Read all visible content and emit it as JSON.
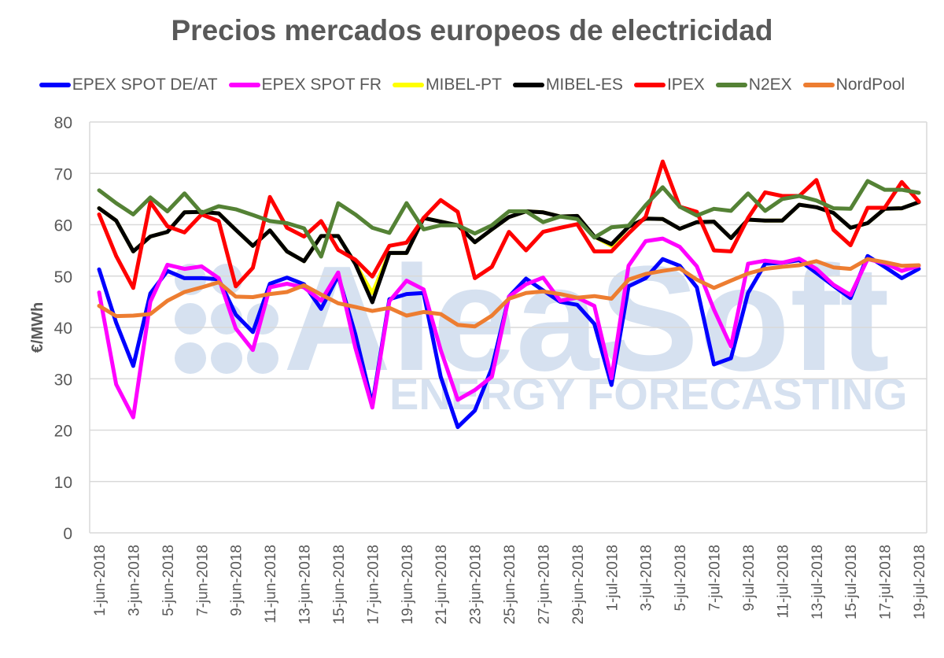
{
  "chart_data": {
    "type": "line",
    "title": "Precios mercados europeos de electricidad",
    "xlabel": "",
    "ylabel": "€/MWh",
    "ylim": [
      0,
      80
    ],
    "yticks": [
      0,
      10,
      20,
      30,
      40,
      50,
      60,
      70,
      80
    ],
    "grid": true,
    "legend_position": "top",
    "watermark": {
      "main": "AleaSoft",
      "sub": "ENERGY FORECASTING"
    },
    "x": [
      "1-jun-2018",
      "2-jun-2018",
      "3-jun-2018",
      "4-jun-2018",
      "5-jun-2018",
      "6-jun-2018",
      "7-jun-2018",
      "8-jun-2018",
      "9-jun-2018",
      "10-jun-2018",
      "11-jun-2018",
      "12-jun-2018",
      "13-jun-2018",
      "14-jun-2018",
      "15-jun-2018",
      "16-jun-2018",
      "17-jun-2018",
      "18-jun-2018",
      "19-jun-2018",
      "20-jun-2018",
      "21-jun-2018",
      "22-jun-2018",
      "23-jun-2018",
      "24-jun-2018",
      "25-jun-2018",
      "26-jun-2018",
      "27-jun-2018",
      "28-jun-2018",
      "29-jun-2018",
      "30-jun-2018",
      "1-jul-2018",
      "2-jul-2018",
      "3-jul-2018",
      "4-jul-2018",
      "5-jul-2018",
      "6-jul-2018",
      "7-jul-2018",
      "8-jul-2018",
      "9-jul-2018",
      "10-jul-2018",
      "11-jul-2018",
      "12-jul-2018",
      "13-jul-2018",
      "14-jul-2018",
      "15-jul-2018",
      "16-jul-2018",
      "17-jul-2018",
      "18-jul-2018",
      "19-jul-2018"
    ],
    "xtick_labels": [
      "1-jun-2018",
      "3-jun-2018",
      "5-jun-2018",
      "7-jun-2018",
      "9-jun-2018",
      "11-jun-2018",
      "13-jun-2018",
      "15-jun-2018",
      "17-jun-2018",
      "19-jun-2018",
      "21-jun-2018",
      "23-jun-2018",
      "25-jun-2018",
      "27-jun-2018",
      "29-jun-2018",
      "1-jul-2018",
      "3-jul-2018",
      "5-jul-2018",
      "7-jul-2018",
      "9-jul-2018",
      "11-jul-2018",
      "13-jul-2018",
      "15-jul-2018",
      "17-jul-2018",
      "19-jul-2018"
    ],
    "series": [
      {
        "name": "EPEX SPOT DE/AT",
        "color": "#0000FF",
        "values": [
          51.3,
          40.9,
          32.5,
          46.6,
          51.0,
          49.6,
          49.6,
          49.4,
          42.5,
          39.1,
          48.5,
          49.7,
          48.4,
          43.6,
          50.1,
          38.7,
          25.0,
          45.5,
          46.5,
          46.7,
          30.4,
          20.6,
          23.8,
          32.1,
          46.0,
          49.5,
          47.2,
          45.0,
          44.4,
          40.7,
          28.8,
          48.0,
          49.6,
          53.3,
          52.0,
          47.8,
          32.8,
          34.0,
          46.7,
          52.4,
          52.6,
          53.1,
          50.6,
          48.1,
          45.7,
          53.9,
          51.8,
          49.6,
          51.4
        ]
      },
      {
        "name": "EPEX SPOT FR",
        "color": "#FF00FF",
        "values": [
          46.8,
          28.9,
          22.5,
          45.0,
          52.2,
          51.4,
          51.9,
          49.6,
          39.8,
          35.6,
          47.8,
          48.5,
          47.8,
          45.2,
          50.7,
          36.1,
          24.4,
          45.1,
          49.1,
          47.4,
          35.6,
          25.9,
          27.8,
          30.4,
          46.0,
          48.4,
          49.7,
          45.2,
          45.8,
          44.2,
          30.1,
          52.0,
          56.8,
          57.3,
          55.7,
          51.9,
          43.5,
          36.3,
          52.4,
          53.0,
          52.6,
          53.4,
          51.4,
          48.3,
          46.3,
          53.3,
          52.5,
          51.0,
          52.0
        ]
      },
      {
        "name": "MIBEL-PT",
        "color": "#FFFF00",
        "values": [
          63.2,
          60.8,
          54.8,
          57.7,
          58.6,
          62.4,
          62.5,
          62.2,
          59.0,
          55.9,
          58.9,
          54.8,
          52.9,
          57.8,
          57.8,
          52.4,
          46.7,
          54.5,
          54.5,
          61.3,
          60.6,
          59.9,
          56.6,
          59.1,
          61.5,
          62.6,
          62.4,
          61.6,
          61.7,
          57.7,
          55.9,
          59.6,
          61.2,
          61.1,
          59.2,
          60.5,
          60.6,
          57.4,
          61.0,
          60.8,
          60.8,
          63.9,
          63.4,
          62.3,
          59.4,
          60.3,
          63.1,
          63.2,
          64.4
        ]
      },
      {
        "name": "MIBEL-ES",
        "color": "#000000",
        "values": [
          63.2,
          60.8,
          54.8,
          57.7,
          58.6,
          62.4,
          62.5,
          62.2,
          59.0,
          55.9,
          58.9,
          54.8,
          52.9,
          57.8,
          57.8,
          52.4,
          44.9,
          54.5,
          54.5,
          61.3,
          60.6,
          59.9,
          56.6,
          59.1,
          61.5,
          62.6,
          62.4,
          61.6,
          61.7,
          57.7,
          56.2,
          59.6,
          61.2,
          61.1,
          59.2,
          60.5,
          60.6,
          57.4,
          61.0,
          60.8,
          60.8,
          63.9,
          63.4,
          62.3,
          59.4,
          60.3,
          63.1,
          63.2,
          64.4
        ]
      },
      {
        "name": "IPEX",
        "color": "#FF0000",
        "values": [
          62.0,
          53.9,
          47.7,
          64.4,
          59.7,
          58.5,
          62.0,
          60.7,
          48.0,
          51.6,
          65.4,
          59.4,
          57.7,
          60.7,
          55.1,
          53.2,
          49.9,
          55.9,
          56.5,
          61.3,
          64.8,
          62.5,
          49.6,
          51.8,
          58.6,
          55.0,
          58.6,
          59.4,
          60.1,
          54.8,
          54.8,
          58.3,
          61.5,
          72.3,
          63.5,
          62.5,
          55.0,
          54.8,
          61.3,
          66.3,
          65.6,
          65.6,
          68.7,
          59.0,
          56.0,
          63.3,
          63.3,
          68.3,
          64.5
        ]
      },
      {
        "name": "N2EX",
        "color": "#548235",
        "values": [
          66.7,
          64.2,
          62.0,
          65.3,
          62.6,
          66.1,
          62.3,
          63.6,
          63.0,
          61.9,
          60.7,
          60.3,
          59.3,
          53.8,
          64.2,
          62.0,
          59.4,
          58.4,
          64.2,
          59.1,
          59.9,
          59.9,
          58.3,
          59.9,
          62.6,
          62.6,
          60.5,
          61.6,
          61.1,
          57.5,
          59.5,
          59.8,
          63.8,
          67.3,
          63.5,
          61.8,
          63.1,
          62.7,
          66.1,
          62.7,
          65.0,
          65.6,
          64.7,
          63.2,
          63.1,
          68.5,
          66.8,
          66.8,
          66.2
        ]
      },
      {
        "name": "NordPool",
        "color": "#ED7D31",
        "values": [
          44.2,
          42.2,
          42.3,
          42.6,
          45.2,
          46.9,
          47.8,
          48.8,
          46.0,
          45.9,
          46.5,
          46.9,
          48.2,
          46.4,
          44.7,
          44.0,
          43.2,
          43.8,
          42.3,
          43.0,
          42.6,
          40.5,
          40.2,
          42.3,
          45.6,
          46.7,
          47.0,
          46.5,
          45.8,
          46.1,
          45.6,
          49.3,
          50.4,
          51.0,
          51.5,
          49.3,
          47.7,
          49.1,
          50.5,
          51.4,
          51.8,
          52.1,
          52.9,
          51.7,
          51.4,
          53.3,
          52.7,
          52.0,
          52.1
        ]
      }
    ]
  }
}
